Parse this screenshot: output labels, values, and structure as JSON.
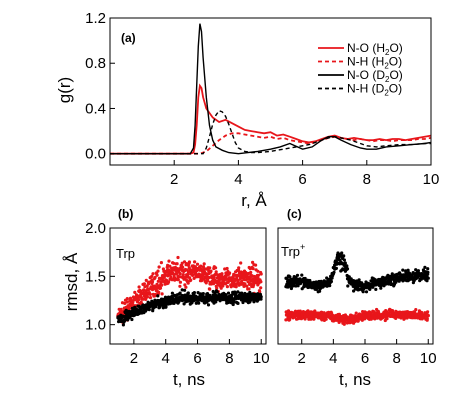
{
  "colors": {
    "red": "#e8161b",
    "black": "#000000",
    "axis": "#000000"
  },
  "chart_data": [
    {
      "id": "a",
      "type": "line",
      "panel_label": "(a)",
      "xlabel": "r, Å",
      "ylabel": "g(r)",
      "xlim": [
        0,
        10
      ],
      "ylim": [
        -0.1,
        1.2
      ],
      "xticks": [
        2,
        4,
        6,
        8,
        10
      ],
      "yticks": [
        0.0,
        0.4,
        0.8,
        1.2
      ],
      "ytick_labels": [
        "0.0",
        "0.4",
        "0.8",
        "1.2"
      ],
      "legend": {
        "placement": "top-right"
      },
      "series": [
        {
          "name": "N-O (H2O)",
          "name_base": "N-O (H",
          "name_sub": "2",
          "name_tail": "O)",
          "color": "#e8161b",
          "dash": false,
          "x": [
            0,
            2.5,
            2.6,
            2.65,
            2.7,
            2.75,
            2.8,
            2.85,
            2.9,
            3.0,
            3.2,
            3.4,
            3.6,
            3.8,
            4.0,
            4.2,
            4.4,
            4.6,
            4.8,
            5.0,
            5.2,
            5.4,
            5.6,
            5.8,
            6.0,
            6.2,
            6.4,
            6.6,
            6.8,
            7.0,
            7.2,
            7.4,
            7.6,
            7.8,
            8.0,
            8.2,
            8.4,
            8.6,
            8.8,
            9.0,
            9.2,
            9.4,
            9.6,
            9.8,
            10.0
          ],
          "y": [
            0,
            0,
            0.01,
            0.08,
            0.25,
            0.5,
            0.6,
            0.58,
            0.5,
            0.4,
            0.32,
            0.28,
            0.3,
            0.27,
            0.24,
            0.21,
            0.2,
            0.19,
            0.18,
            0.19,
            0.16,
            0.17,
            0.15,
            0.13,
            0.11,
            0.1,
            0.11,
            0.13,
            0.15,
            0.16,
            0.14,
            0.13,
            0.14,
            0.13,
            0.12,
            0.12,
            0.13,
            0.12,
            0.13,
            0.13,
            0.12,
            0.13,
            0.14,
            0.15,
            0.16
          ]
        },
        {
          "name": "N-H (H2O)",
          "name_base": "N-H (H",
          "name_sub": "2",
          "name_tail": "O)",
          "color": "#e8161b",
          "dash": true,
          "x": [
            0,
            2.8,
            3.0,
            3.2,
            3.4,
            3.6,
            3.8,
            4.0,
            4.2,
            4.4,
            4.6,
            4.8,
            5.0,
            5.2,
            5.4,
            5.6,
            5.8,
            6.0,
            6.2,
            6.4,
            6.6,
            6.8,
            7.0,
            7.2,
            7.4,
            7.6,
            7.8,
            8.0,
            8.2,
            8.4,
            8.6,
            8.8,
            9.0,
            9.2,
            9.4,
            9.6,
            9.8,
            10.0
          ],
          "y": [
            0,
            0,
            0.02,
            0.07,
            0.12,
            0.16,
            0.18,
            0.18,
            0.17,
            0.16,
            0.15,
            0.14,
            0.15,
            0.13,
            0.14,
            0.12,
            0.11,
            0.1,
            0.09,
            0.1,
            0.12,
            0.14,
            0.15,
            0.14,
            0.13,
            0.12,
            0.13,
            0.12,
            0.11,
            0.12,
            0.12,
            0.11,
            0.12,
            0.12,
            0.12,
            0.13,
            0.13,
            0.14
          ]
        },
        {
          "name": "N-O (D2O)",
          "name_base": "N-O (D",
          "name_sub": "2",
          "name_tail": "O)",
          "color": "#000000",
          "dash": false,
          "x": [
            0,
            2.5,
            2.6,
            2.65,
            2.7,
            2.75,
            2.8,
            2.85,
            2.9,
            3.0,
            3.1,
            3.2,
            3.3,
            3.5,
            3.7,
            4.0,
            4.3,
            4.6,
            5.0,
            5.3,
            5.6,
            6.0,
            6.3,
            6.6,
            6.8,
            7.0,
            7.2,
            7.5,
            7.8,
            8.0,
            8.3,
            8.6,
            9.0,
            9.4,
            9.8,
            10.0
          ],
          "y": [
            0,
            0,
            0.05,
            0.25,
            0.6,
            0.95,
            1.15,
            1.08,
            0.85,
            0.5,
            0.25,
            0.12,
            0.06,
            0.03,
            0.01,
            0.0,
            0.01,
            0.02,
            0.04,
            0.06,
            0.09,
            0.04,
            0.06,
            0.12,
            0.15,
            0.15,
            0.12,
            0.08,
            0.05,
            0.04,
            0.04,
            0.06,
            0.07,
            0.08,
            0.09,
            0.1
          ]
        },
        {
          "name": "N-H (D2O)",
          "name_base": "N-H (D",
          "name_sub": "2",
          "name_tail": "O)",
          "color": "#000000",
          "dash": true,
          "x": [
            0,
            2.9,
            3.0,
            3.1,
            3.2,
            3.3,
            3.4,
            3.5,
            3.6,
            3.7,
            3.8,
            3.9,
            4.0,
            4.2,
            4.4,
            4.6,
            5.0,
            5.4,
            5.8,
            6.0,
            6.2,
            6.4,
            6.6,
            6.8,
            7.0,
            7.2,
            7.5,
            7.8,
            8.0,
            8.3,
            8.6,
            9.0,
            9.4,
            9.8,
            10.0
          ],
          "y": [
            0,
            0,
            0.05,
            0.15,
            0.26,
            0.34,
            0.38,
            0.37,
            0.33,
            0.26,
            0.18,
            0.1,
            0.05,
            0.02,
            0.01,
            0.01,
            0.02,
            0.04,
            0.06,
            0.07,
            0.08,
            0.1,
            0.12,
            0.14,
            0.15,
            0.14,
            0.12,
            0.09,
            0.07,
            0.06,
            0.07,
            0.08,
            0.08,
            0.09,
            0.09
          ]
        }
      ]
    },
    {
      "id": "b",
      "type": "scatter",
      "panel_label": "(b)",
      "inner_label": "Trp",
      "xlabel": "t, ns",
      "ylabel": "rmsd, Å",
      "xlim": [
        0.5,
        10.3
      ],
      "ylim": [
        0.8,
        2.0
      ],
      "xticks": [
        2,
        4,
        6,
        8,
        10
      ],
      "yticks": [
        1.0,
        1.5,
        2.0
      ],
      "ytick_labels": [
        "1.0",
        "1.5",
        "2.0"
      ],
      "series": [
        {
          "color": "#e8161b",
          "x": [
            1,
            2,
            3,
            4,
            5,
            6,
            7,
            8,
            9,
            10
          ],
          "y": [
            1.08,
            1.22,
            1.38,
            1.5,
            1.55,
            1.52,
            1.5,
            1.45,
            1.5,
            1.47
          ],
          "spread": [
            0.08,
            0.1,
            0.12,
            0.14,
            0.14,
            0.12,
            0.12,
            0.12,
            0.14,
            0.12
          ]
        },
        {
          "color": "#000000",
          "x": [
            1,
            2,
            3,
            4,
            5,
            6,
            7,
            8,
            9,
            10
          ],
          "y": [
            1.05,
            1.12,
            1.2,
            1.24,
            1.27,
            1.28,
            1.27,
            1.28,
            1.28,
            1.29
          ],
          "spread": [
            0.06,
            0.06,
            0.06,
            0.06,
            0.06,
            0.06,
            0.06,
            0.06,
            0.06,
            0.06
          ]
        }
      ]
    },
    {
      "id": "c",
      "type": "scatter",
      "panel_label": "(c)",
      "inner_label": "Trp",
      "inner_label_sup": "+",
      "xlabel": "t, ns",
      "xlim": [
        0.5,
        10.3
      ],
      "ylim": [
        0.8,
        2.0
      ],
      "xticks": [
        2,
        4,
        6,
        8,
        10
      ],
      "series": [
        {
          "color": "#000000",
          "x": [
            1,
            2,
            3,
            3.8,
            4.3,
            4.7,
            5,
            5.5,
            6,
            7,
            8,
            9,
            10
          ],
          "y": [
            1.45,
            1.45,
            1.4,
            1.45,
            1.7,
            1.6,
            1.45,
            1.4,
            1.4,
            1.45,
            1.48,
            1.5,
            1.52
          ],
          "spread": [
            0.07,
            0.06,
            0.06,
            0.06,
            0.1,
            0.1,
            0.06,
            0.06,
            0.06,
            0.06,
            0.06,
            0.06,
            0.06
          ]
        },
        {
          "color": "#e8161b",
          "x": [
            1,
            2,
            3,
            4,
            5,
            6,
            7,
            8,
            9,
            10
          ],
          "y": [
            1.1,
            1.1,
            1.1,
            1.08,
            1.05,
            1.1,
            1.1,
            1.1,
            1.1,
            1.1
          ],
          "spread": [
            0.05,
            0.05,
            0.05,
            0.05,
            0.05,
            0.05,
            0.05,
            0.05,
            0.05,
            0.05
          ]
        }
      ]
    }
  ]
}
